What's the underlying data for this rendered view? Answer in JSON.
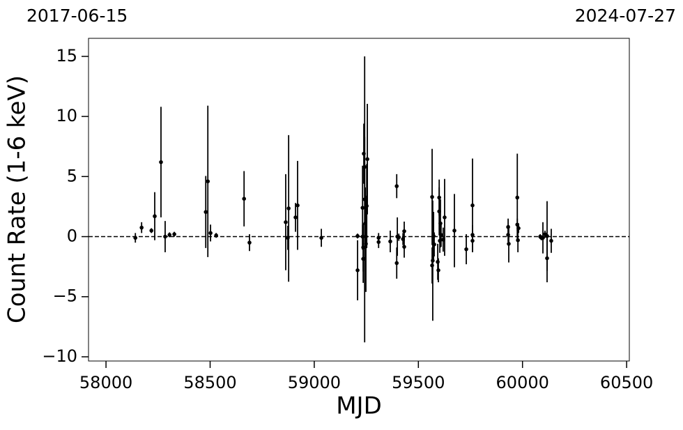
{
  "chart_data": {
    "type": "errorbar",
    "xlabel": "MJD",
    "ylabel": "Count Rate (1-6 keV)",
    "annotations": [
      "2017-06-15",
      "2024-07-27"
    ],
    "xlim": [
      57916,
      60513
    ],
    "ylim": [
      -10.35,
      16.5
    ],
    "xticks": [
      58000,
      58500,
      59000,
      59500,
      60000,
      60500
    ],
    "yticks": [
      {
        "value": -10,
        "label": "−10"
      },
      {
        "value": -5,
        "label": "−5"
      },
      0,
      5,
      10,
      15
    ],
    "hline": 0,
    "color": "#000000",
    "x": [
      58141,
      58171,
      58218,
      58234,
      58264,
      58284,
      58305,
      58328,
      58479,
      58489,
      58502,
      58529,
      58663,
      58689,
      58863,
      58873,
      58877,
      58910,
      58920,
      59034,
      59208,
      59208,
      59232,
      59232,
      59235,
      59238,
      59242,
      59242,
      59245,
      59248,
      59252,
      59255,
      59248,
      59235,
      59309,
      59309,
      59365,
      59396,
      59396,
      59399,
      59406,
      59426,
      59432,
      59432,
      59566,
      59566,
      59569,
      59573,
      59576,
      59593,
      59596,
      59600,
      59600,
      59603,
      59606,
      59609,
      59626,
      59619,
      59673,
      59730,
      59760,
      59760,
      59760,
      59931,
      59931,
      59934,
      59975,
      59975,
      59978,
      59981,
      60085,
      60091,
      60098,
      60108,
      60118,
      60118,
      60138
    ],
    "values": [
      -0.1,
      0.75,
      0.5,
      1.7,
      6.2,
      0.0,
      0.15,
      0.2,
      2.05,
      4.6,
      0.3,
      0.1,
      3.15,
      -0.5,
      1.2,
      -0.1,
      2.35,
      1.6,
      2.6,
      -0.1,
      -2.8,
      0.05,
      0.0,
      2.4,
      -0.9,
      6.9,
      3.1,
      5.8,
      1.1,
      -0.6,
      2.55,
      6.45,
      0.0,
      -1.85,
      -0.45,
      -0.1,
      -0.4,
      4.2,
      -2.2,
      0.0,
      -0.05,
      -0.2,
      0.45,
      -0.85,
      3.3,
      -2.4,
      -2.0,
      0.05,
      -0.65,
      -2.1,
      -2.8,
      2.1,
      3.25,
      -0.35,
      1.1,
      0.15,
      1.6,
      -0.25,
      0.5,
      -1.05,
      2.6,
      0.15,
      -0.35,
      0.8,
      0.15,
      -0.6,
      3.25,
      1.0,
      -0.3,
      0.7,
      0.0,
      -0.1,
      -0.1,
      0.2,
      0.05,
      -1.8,
      -0.35
    ],
    "yerr": [
      0.4,
      0.45,
      0.2,
      2.0,
      4.6,
      1.3,
      0.2,
      0.2,
      3.0,
      6.3,
      0.7,
      0.2,
      2.3,
      0.7,
      4.0,
      1.0,
      6.1,
      1.2,
      3.7,
      0.75,
      2.5,
      0.2,
      1.0,
      3.5,
      2.0,
      2.5,
      11.9,
      2.5,
      3.0,
      4.0,
      3.5,
      4.6,
      1.0,
      2.0,
      0.5,
      0.4,
      0.9,
      1.0,
      1.3,
      1.6,
      0.3,
      0.5,
      0.8,
      0.9,
      4.0,
      1.5,
      5.0,
      2.0,
      1.0,
      1.5,
      1.0,
      2.0,
      1.5,
      1.0,
      2.0,
      1.0,
      3.2,
      1.0,
      3.05,
      1.25,
      3.9,
      0.8,
      0.8,
      0.7,
      0.6,
      1.55,
      3.65,
      0.5,
      1.0,
      0.4,
      0.2,
      0.2,
      1.3,
      0.3,
      2.9,
      2.0,
      1.0
    ]
  }
}
